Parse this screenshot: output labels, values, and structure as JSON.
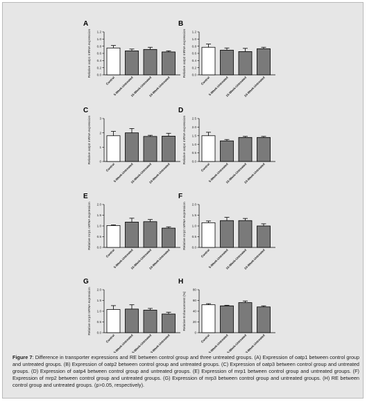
{
  "caption": {
    "label": "Figure 7",
    "text": ": Difference in transporter expressions and RE between control group and three untreated groups. (A) Expression of oatp1 between control group and untreated groups. (B) Expression of oatp2 between control group and untreated groups. (C) Expression of oatp3 between control group and untreated groups. (D) Expression of oatp4 between control group and untreated groups. (E) Expression of mrp1 between control group and untreated groups. (F) Expression of mrp2 between control group and untreated groups. (G) Expression of mrp3 between control group and untreated groups. (H) RE between control group and untreated groups. (p>0.05, respectively)."
  },
  "colors": {
    "control": "#ffffff",
    "treated": "#7a7a7a",
    "stroke": "#000000",
    "background": "#e6e6e6"
  },
  "chart_data": [
    {
      "type": "bar",
      "panel": "A",
      "categories": [
        "Control",
        "5-Week-Untreated",
        "15-Week-Untreated",
        "24-Week-Untreated"
      ],
      "values": [
        0.75,
        0.67,
        0.71,
        0.64
      ],
      "errors": [
        0.07,
        0.05,
        0.06,
        0.03
      ],
      "ylabel": "Relative oatp1 mRNA expression",
      "ylim": [
        0,
        1.2
      ],
      "yticks": [
        "0.0",
        "0.2",
        "0.4",
        "0.6",
        "0.8",
        "1.0",
        "1.2"
      ],
      "ytick_values": [
        0,
        0.2,
        0.4,
        0.6,
        0.8,
        1.0,
        1.2
      ]
    },
    {
      "type": "bar",
      "panel": "B",
      "categories": [
        "Control",
        "5-Week-Untreated",
        "15-Week-Untreated",
        "24-Week-Untreated"
      ],
      "values": [
        0.77,
        0.69,
        0.65,
        0.73
      ],
      "errors": [
        0.09,
        0.06,
        0.09,
        0.04
      ],
      "ylabel": "Relative oatp2 mRNA expression",
      "ylim": [
        0,
        1.2
      ],
      "yticks": [
        "0.0",
        "0.2",
        "0.4",
        "0.6",
        "0.8",
        "1.0",
        "1.2"
      ],
      "ytick_values": [
        0,
        0.2,
        0.4,
        0.6,
        0.8,
        1.0,
        1.2
      ]
    },
    {
      "type": "bar",
      "panel": "C",
      "categories": [
        "Control",
        "5-Week-Untreated",
        "15-Week-Untreated",
        "24-Week-Untreated"
      ],
      "values": [
        1.8,
        2.0,
        1.75,
        1.77
      ],
      "errors": [
        0.3,
        0.3,
        0.08,
        0.2
      ],
      "ylabel": "Relative oatp3 mRNA expression",
      "ylim": [
        0,
        3
      ],
      "yticks": [
        "0",
        "1",
        "2",
        "3"
      ],
      "ytick_values": [
        0,
        1,
        2,
        3
      ]
    },
    {
      "type": "bar",
      "panel": "D",
      "categories": [
        "Control",
        "5-Week-Untreated",
        "15-Week-Untreated",
        "24-Week-Untreated"
      ],
      "values": [
        1.5,
        1.2,
        1.4,
        1.4
      ],
      "errors": [
        0.2,
        0.08,
        0.06,
        0.06
      ],
      "ylabel": "Relative oatp4 mRNA expression",
      "ylim": [
        0,
        2.5
      ],
      "yticks": [
        "0.0",
        "0.5",
        "1.0",
        "1.5",
        "2.0",
        "2.5"
      ],
      "ytick_values": [
        0,
        0.5,
        1.0,
        1.5,
        2.0,
        2.5
      ]
    },
    {
      "type": "bar",
      "panel": "E",
      "categories": [
        "Control",
        "5-Week-Untreated",
        "15-Week-Untreated",
        "24-Week-Untreated"
      ],
      "values": [
        1.02,
        1.18,
        1.2,
        0.9
      ],
      "errors": [
        0.03,
        0.18,
        0.1,
        0.06
      ],
      "ylabel": "Relative mrp1 mRNA expression",
      "ylim": [
        0,
        2.0
      ],
      "yticks": [
        "0.0",
        "0.5",
        "1.0",
        "1.5",
        "2.0"
      ],
      "ytick_values": [
        0,
        0.5,
        1.0,
        1.5,
        2.0
      ]
    },
    {
      "type": "bar",
      "panel": "F",
      "categories": [
        "Control",
        "5-Week-Untreated",
        "15-Week-Untreated",
        "24-Week-Untreated"
      ],
      "values": [
        1.15,
        1.25,
        1.25,
        1.0
      ],
      "errors": [
        0.08,
        0.15,
        0.1,
        0.1
      ],
      "ylabel": "Relative mrp2 mRNA expression",
      "ylim": [
        0,
        2.0
      ],
      "yticks": [
        "0.0",
        "0.5",
        "1.0",
        "1.5",
        "2.0"
      ],
      "ytick_values": [
        0,
        0.5,
        1.0,
        1.5,
        2.0
      ]
    },
    {
      "type": "bar",
      "panel": "G",
      "categories": [
        "Control",
        "5-Week-Untreated",
        "15-Week-Untreated",
        "24-Week-Untreated"
      ],
      "values": [
        1.08,
        1.1,
        1.05,
        0.87
      ],
      "errors": [
        0.18,
        0.2,
        0.08,
        0.08
      ],
      "ylabel": "Relative mrp3 mRNA expression",
      "ylim": [
        0,
        2.0
      ],
      "yticks": [
        "0.0",
        "0.5",
        "1.0",
        "1.5",
        "2.0"
      ],
      "ytick_values": [
        0,
        0.5,
        1.0,
        1.5,
        2.0
      ]
    },
    {
      "type": "bar",
      "panel": "H",
      "categories": [
        "Control",
        "5-Week-Untreated",
        "15-Week-Untreated",
        "24-Week-Untreated"
      ],
      "values": [
        52,
        50,
        56,
        48
      ],
      "errors": [
        2,
        1,
        3,
        2
      ],
      "ylabel": "Relative Enhancement (%)",
      "ylim": [
        0,
        80
      ],
      "yticks": [
        "0",
        "20",
        "40",
        "60",
        "80"
      ],
      "ytick_values": [
        0,
        20,
        40,
        60,
        80
      ]
    }
  ]
}
